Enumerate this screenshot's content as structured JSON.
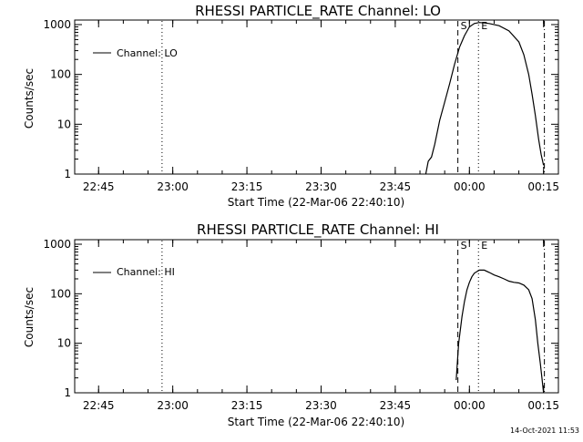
{
  "chart_data": [
    {
      "type": "line",
      "title": "RHESSI PARTICLE_RATE Channel: LO",
      "xlabel": "Start Time (22-Mar-06 22:40:10)",
      "ylabel": "Counts/sec",
      "yscale": "log",
      "ylim": [
        1,
        1000
      ],
      "xlim": [
        "22:40:10",
        "00:18:00"
      ],
      "xticks": [
        "22:45",
        "23:00",
        "23:15",
        "23:30",
        "23:45",
        "00:00",
        "00:15"
      ],
      "yticks": [
        "1",
        "10",
        "100",
        "1000"
      ],
      "legend": {
        "position": "top-left",
        "entries": [
          "Channel: LO"
        ]
      },
      "grid": false,
      "vlines": [
        {
          "x": "22:57:50",
          "style": "dotted",
          "label": ""
        },
        {
          "x": "23:57:40",
          "style": "dashed",
          "label": "S"
        },
        {
          "x": "00:01:50",
          "style": "dotted",
          "label": "E"
        },
        {
          "x": "00:15:10",
          "style": "dash-dot",
          "label": ""
        }
      ],
      "series": [
        {
          "name": "Channel: LO",
          "x": [
            "23:51:10",
            "23:51:40",
            "23:52:20",
            "23:53:00",
            "23:54:00",
            "23:55:00",
            "23:56:00",
            "23:57:00",
            "23:58:00",
            "23:59:00",
            "00:00:00",
            "00:01:00",
            "00:02:00",
            "00:03:00",
            "00:04:00",
            "00:06:00",
            "00:08:00",
            "00:10:00",
            "00:11:00",
            "00:12:00",
            "00:12:40",
            "00:13:20",
            "00:14:00",
            "00:14:30",
            "00:15:00"
          ],
          "values": [
            1.0,
            1.8,
            2.2,
            4,
            12,
            28,
            65,
            160,
            350,
            600,
            900,
            1050,
            1100,
            1080,
            1050,
            950,
            750,
            450,
            250,
            100,
            40,
            15,
            5,
            2.5,
            1.5
          ]
        }
      ]
    },
    {
      "type": "line",
      "title": "RHESSI PARTICLE_RATE Channel: HI",
      "xlabel": "Start Time (22-Mar-06 22:40:10)",
      "ylabel": "Counts/sec",
      "yscale": "log",
      "ylim": [
        1,
        1000
      ],
      "xlim": [
        "22:40:10",
        "00:18:00"
      ],
      "xticks": [
        "22:45",
        "23:00",
        "23:15",
        "23:30",
        "23:45",
        "00:00",
        "00:15"
      ],
      "yticks": [
        "1",
        "10",
        "100",
        "1000"
      ],
      "legend": {
        "position": "top-left",
        "entries": [
          "Channel: HI"
        ]
      },
      "grid": false,
      "vlines": [
        {
          "x": "22:57:50",
          "style": "dotted",
          "label": ""
        },
        {
          "x": "23:57:40",
          "style": "dashed",
          "label": "S"
        },
        {
          "x": "00:01:50",
          "style": "dotted",
          "label": "E"
        },
        {
          "x": "00:15:10",
          "style": "dash-dot",
          "label": ""
        }
      ],
      "series": [
        {
          "name": "Channel: HI",
          "x": [
            "23:57:20",
            "23:57:50",
            "23:58:30",
            "23:59:00",
            "23:59:30",
            "00:00:00",
            "00:00:30",
            "00:01:00",
            "00:02:00",
            "00:03:00",
            "00:04:00",
            "00:05:00",
            "00:06:00",
            "00:07:00",
            "00:08:00",
            "00:09:00",
            "00:10:00",
            "00:11:00",
            "00:12:00",
            "00:12:40",
            "00:13:20",
            "00:13:50",
            "00:14:20",
            "00:14:40",
            "00:15:00"
          ],
          "values": [
            1.8,
            10,
            35,
            70,
            120,
            170,
            220,
            260,
            300,
            300,
            270,
            240,
            220,
            200,
            180,
            170,
            165,
            150,
            120,
            80,
            30,
            10,
            4,
            2,
            1
          ]
        }
      ]
    }
  ],
  "timestamp": "14-Oct-2021 11:53"
}
